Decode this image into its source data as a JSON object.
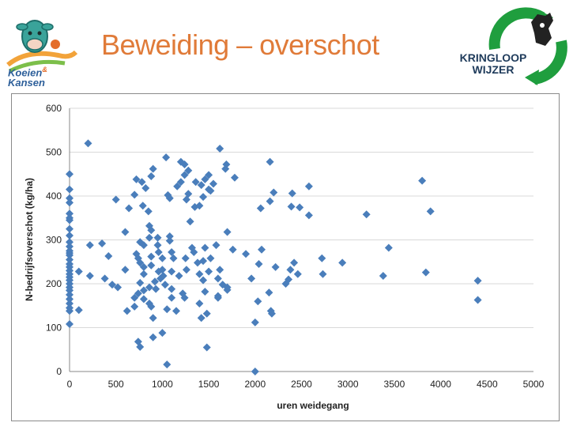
{
  "slide": {
    "title": "Beweiding – overschot"
  },
  "logos": {
    "left_text_line1": "Koeien",
    "left_text_amp": "&",
    "left_text_line2": "Kansen",
    "right_text_line1": "KRINGLOOP",
    "right_text_line2": "WIJZER"
  },
  "colors": {
    "title": "#e07b39",
    "marker": "#4a7ebb",
    "grid": "#d9d9d9",
    "logo_green": "#1f9e3e"
  },
  "chart_data": {
    "type": "scatter",
    "title": "",
    "xlabel": "uren weidegang",
    "ylabel": "N-bedrijfsoverschot (kg/ha)",
    "xlim": [
      0,
      5000
    ],
    "ylim": [
      0,
      600
    ],
    "x_ticks": [
      "0",
      "500",
      "1000",
      "1500",
      "2000",
      "2500",
      "3000",
      "3500",
      "4000",
      "4500",
      "5000"
    ],
    "y_ticks": [
      "0",
      "100",
      "200",
      "300",
      "400",
      "500",
      "600"
    ],
    "grid": "horizontal",
    "legend": "none",
    "marker": "diamond",
    "points": [
      [
        0,
        450
      ],
      [
        0,
        415
      ],
      [
        0,
        395
      ],
      [
        0,
        385
      ],
      [
        0,
        360
      ],
      [
        0,
        345
      ],
      [
        0,
        325
      ],
      [
        0,
        310
      ],
      [
        0,
        295
      ],
      [
        0,
        285
      ],
      [
        0,
        275
      ],
      [
        0,
        265
      ],
      [
        0,
        255
      ],
      [
        0,
        245
      ],
      [
        0,
        238
      ],
      [
        0,
        230
      ],
      [
        0,
        222
      ],
      [
        0,
        215
      ],
      [
        0,
        208
      ],
      [
        0,
        200
      ],
      [
        0,
        192
      ],
      [
        0,
        185
      ],
      [
        0,
        175
      ],
      [
        0,
        165
      ],
      [
        0,
        155
      ],
      [
        0,
        145
      ],
      [
        0,
        138
      ],
      [
        0,
        108
      ],
      [
        0,
        350
      ],
      [
        0,
        270
      ],
      [
        100,
        228
      ],
      [
        100,
        140
      ],
      [
        200,
        520
      ],
      [
        220,
        288
      ],
      [
        220,
        218
      ],
      [
        350,
        292
      ],
      [
        380,
        212
      ],
      [
        420,
        263
      ],
      [
        460,
        198
      ],
      [
        500,
        392
      ],
      [
        520,
        192
      ],
      [
        600,
        232
      ],
      [
        600,
        318
      ],
      [
        620,
        138
      ],
      [
        640,
        372
      ],
      [
        700,
        403
      ],
      [
        700,
        168
      ],
      [
        700,
        148
      ],
      [
        720,
        438
      ],
      [
        720,
        268
      ],
      [
        740,
        258
      ],
      [
        740,
        178
      ],
      [
        740,
        68
      ],
      [
        760,
        56
      ],
      [
        760,
        295
      ],
      [
        760,
        248
      ],
      [
        760,
        202
      ],
      [
        780,
        432
      ],
      [
        790,
        378
      ],
      [
        800,
        288
      ],
      [
        800,
        238
      ],
      [
        800,
        222
      ],
      [
        800,
        185
      ],
      [
        800,
        165
      ],
      [
        820,
        418
      ],
      [
        850,
        365
      ],
      [
        860,
        332
      ],
      [
        860,
        305
      ],
      [
        860,
        192
      ],
      [
        860,
        155
      ],
      [
        880,
        445
      ],
      [
        880,
        322
      ],
      [
        880,
        262
      ],
      [
        880,
        242
      ],
      [
        880,
        148
      ],
      [
        900,
        462
      ],
      [
        900,
        122
      ],
      [
        900,
        78
      ],
      [
        920,
        205
      ],
      [
        930,
        188
      ],
      [
        950,
        305
      ],
      [
        950,
        288
      ],
      [
        960,
        272
      ],
      [
        960,
        228
      ],
      [
        980,
        212
      ],
      [
        1000,
        88
      ],
      [
        1000,
        258
      ],
      [
        1000,
        232
      ],
      [
        1010,
        218
      ],
      [
        1030,
        198
      ],
      [
        1040,
        488
      ],
      [
        1050,
        16
      ],
      [
        1050,
        142
      ],
      [
        1060,
        402
      ],
      [
        1080,
        395
      ],
      [
        1080,
        308
      ],
      [
        1080,
        298
      ],
      [
        1100,
        272
      ],
      [
        1100,
        228
      ],
      [
        1100,
        188
      ],
      [
        1100,
        168
      ],
      [
        1120,
        258
      ],
      [
        1150,
        138
      ],
      [
        1160,
        422
      ],
      [
        1180,
        218
      ],
      [
        1200,
        478
      ],
      [
        1200,
        432
      ],
      [
        1220,
        178
      ],
      [
        1240,
        448
      ],
      [
        1240,
        472
      ],
      [
        1240,
        168
      ],
      [
        1250,
        258
      ],
      [
        1260,
        392
      ],
      [
        1260,
        232
      ],
      [
        1280,
        458
      ],
      [
        1280,
        405
      ],
      [
        1300,
        342
      ],
      [
        1320,
        282
      ],
      [
        1340,
        272
      ],
      [
        1350,
        375
      ],
      [
        1360,
        432
      ],
      [
        1380,
        248
      ],
      [
        1400,
        378
      ],
      [
        1400,
        222
      ],
      [
        1400,
        155
      ],
      [
        1420,
        122
      ],
      [
        1420,
        425
      ],
      [
        1440,
        398
      ],
      [
        1440,
        252
      ],
      [
        1440,
        208
      ],
      [
        1460,
        438
      ],
      [
        1460,
        282
      ],
      [
        1460,
        182
      ],
      [
        1480,
        55
      ],
      [
        1480,
        132
      ],
      [
        1500,
        448
      ],
      [
        1500,
        415
      ],
      [
        1500,
        228
      ],
      [
        1520,
        258
      ],
      [
        1520,
        412
      ],
      [
        1550,
        428
      ],
      [
        1580,
        288
      ],
      [
        1600,
        172
      ],
      [
        1600,
        212
      ],
      [
        1600,
        168
      ],
      [
        1620,
        232
      ],
      [
        1620,
        508
      ],
      [
        1650,
        198
      ],
      [
        1680,
        462
      ],
      [
        1690,
        472
      ],
      [
        1700,
        318
      ],
      [
        1700,
        192
      ],
      [
        1700,
        186
      ],
      [
        1760,
        278
      ],
      [
        1780,
        442
      ],
      [
        1900,
        268
      ],
      [
        1960,
        212
      ],
      [
        2000,
        0
      ],
      [
        2000,
        112
      ],
      [
        2030,
        160
      ],
      [
        2040,
        245
      ],
      [
        2060,
        372
      ],
      [
        2070,
        278
      ],
      [
        2150,
        180
      ],
      [
        2160,
        388
      ],
      [
        2160,
        478
      ],
      [
        2170,
        138
      ],
      [
        2180,
        132
      ],
      [
        2200,
        408
      ],
      [
        2220,
        238
      ],
      [
        2330,
        200
      ],
      [
        2360,
        210
      ],
      [
        2380,
        232
      ],
      [
        2390,
        376
      ],
      [
        2400,
        406
      ],
      [
        2420,
        248
      ],
      [
        2460,
        222
      ],
      [
        2480,
        374
      ],
      [
        2580,
        422
      ],
      [
        2580,
        356
      ],
      [
        2720,
        258
      ],
      [
        2730,
        222
      ],
      [
        2940,
        248
      ],
      [
        3200,
        358
      ],
      [
        3380,
        218
      ],
      [
        3440,
        282
      ],
      [
        3800,
        435
      ],
      [
        3840,
        226
      ],
      [
        3890,
        365
      ],
      [
        4400,
        207
      ],
      [
        4400,
        163
      ]
    ]
  }
}
